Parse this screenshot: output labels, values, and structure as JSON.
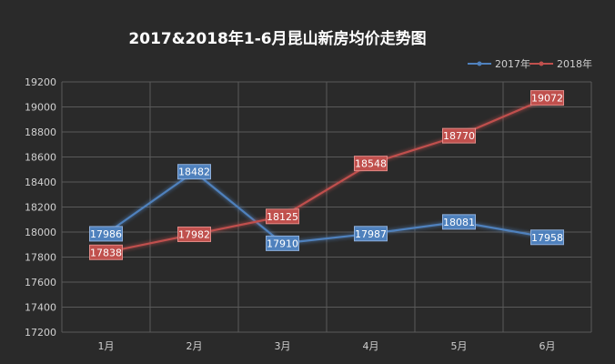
{
  "chart_data": {
    "type": "line",
    "title": "2017&2018年1-6月昆山新房均价走势图",
    "categories": [
      "1月",
      "2月",
      "3月",
      "4月",
      "5月",
      "6月"
    ],
    "ylim": [
      17200,
      19200
    ],
    "yticks": [
      17200,
      17400,
      17600,
      17800,
      18000,
      18200,
      18400,
      18600,
      18800,
      19000,
      19200
    ],
    "grid": true,
    "legend_position": "top-right",
    "series": [
      {
        "name": "2017年",
        "values": [
          17986,
          18482,
          17910,
          17987,
          18081,
          17958
        ],
        "color": "#4f81bd"
      },
      {
        "name": "2018年",
        "values": [
          17838,
          17982,
          18125,
          18548,
          18770,
          19072
        ],
        "color": "#c0504d"
      }
    ]
  }
}
